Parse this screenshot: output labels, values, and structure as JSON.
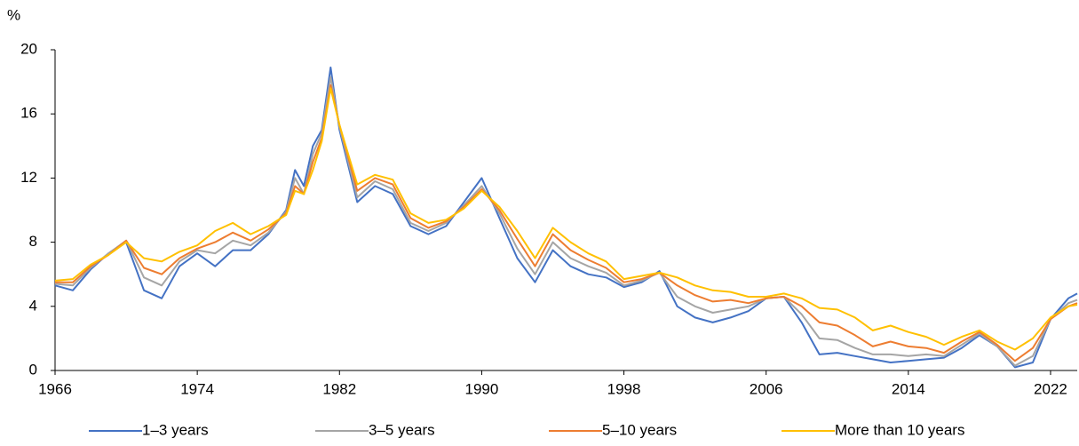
{
  "chart_data": {
    "type": "line",
    "y_label": "%",
    "x": [
      1966,
      1967,
      1968,
      1969,
      1970,
      1971,
      1972,
      1973,
      1974,
      1975,
      1976,
      1977,
      1978,
      1979,
      1979.5,
      1980,
      1980.5,
      1981,
      1981.5,
      1982,
      1983,
      1984,
      1985,
      1986,
      1987,
      1988,
      1989,
      1990,
      1991,
      1992,
      1993,
      1994,
      1995,
      1996,
      1997,
      1998,
      1999,
      2000,
      2001,
      2002,
      2003,
      2004,
      2005,
      2006,
      2007,
      2008,
      2009,
      2010,
      2011,
      2012,
      2013,
      2014,
      2015,
      2016,
      2017,
      2018,
      2019,
      2020,
      2021,
      2022,
      2023,
      2023.5
    ],
    "series": [
      {
        "name": "1–3 years",
        "color": "#4472c4",
        "values": [
          5.3,
          5.0,
          6.3,
          7.3,
          8.0,
          5.0,
          4.5,
          6.5,
          7.3,
          6.5,
          7.5,
          7.5,
          8.5,
          10.0,
          12.5,
          11.5,
          14.0,
          15.0,
          18.9,
          15.0,
          10.5,
          11.5,
          11.0,
          9.0,
          8.5,
          9.0,
          10.5,
          12.0,
          9.5,
          7.0,
          5.5,
          7.5,
          6.5,
          6.0,
          5.8,
          5.2,
          5.5,
          6.2,
          4.0,
          3.3,
          3.0,
          3.3,
          3.7,
          4.5,
          4.6,
          3.0,
          1.0,
          1.1,
          0.9,
          0.7,
          0.5,
          0.6,
          0.7,
          0.8,
          1.4,
          2.2,
          1.5,
          0.2,
          0.5,
          3.2,
          4.5,
          4.8
        ]
      },
      {
        "name": "3–5 years",
        "color": "#a5a5a5",
        "values": [
          5.4,
          5.3,
          6.4,
          7.3,
          8.1,
          5.8,
          5.3,
          6.8,
          7.5,
          7.3,
          8.1,
          7.8,
          8.6,
          9.9,
          12.0,
          11.0,
          13.5,
          14.8,
          18.3,
          15.2,
          10.8,
          11.8,
          11.3,
          9.2,
          8.7,
          9.2,
          10.3,
          11.5,
          9.8,
          7.6,
          6.0,
          8.0,
          7.0,
          6.5,
          6.1,
          5.3,
          5.6,
          6.1,
          4.6,
          4.0,
          3.6,
          3.8,
          4.0,
          4.5,
          4.6,
          3.5,
          2.0,
          1.9,
          1.4,
          1.0,
          1.0,
          0.9,
          1.0,
          0.9,
          1.6,
          2.3,
          1.5,
          0.3,
          0.9,
          3.2,
          4.2,
          4.4
        ]
      },
      {
        "name": "5–10 years",
        "color": "#ed7d31",
        "values": [
          5.5,
          5.5,
          6.5,
          7.2,
          8.1,
          6.4,
          6.0,
          7.0,
          7.6,
          8.0,
          8.6,
          8.1,
          8.8,
          9.8,
          11.5,
          11.0,
          13.0,
          14.5,
          17.8,
          15.3,
          11.2,
          12.0,
          11.6,
          9.5,
          8.9,
          9.3,
          10.2,
          11.3,
          10.0,
          8.2,
          6.5,
          8.5,
          7.5,
          6.9,
          6.4,
          5.5,
          5.7,
          6.1,
          5.3,
          4.7,
          4.3,
          4.4,
          4.2,
          4.5,
          4.6,
          4.0,
          3.0,
          2.8,
          2.2,
          1.5,
          1.8,
          1.5,
          1.4,
          1.1,
          1.8,
          2.4,
          1.6,
          0.6,
          1.4,
          3.2,
          4.0,
          4.2
        ]
      },
      {
        "name": "More than 10 years",
        "color": "#ffc000",
        "values": [
          5.6,
          5.7,
          6.6,
          7.2,
          8.0,
          7.0,
          6.8,
          7.4,
          7.8,
          8.7,
          9.2,
          8.5,
          9.0,
          9.7,
          11.2,
          11.0,
          12.5,
          14.3,
          17.6,
          15.3,
          11.6,
          12.2,
          11.9,
          9.8,
          9.2,
          9.4,
          10.1,
          11.2,
          10.2,
          8.7,
          7.0,
          8.9,
          8.0,
          7.3,
          6.8,
          5.7,
          5.9,
          6.1,
          5.8,
          5.3,
          5.0,
          4.9,
          4.6,
          4.6,
          4.8,
          4.5,
          3.9,
          3.8,
          3.3,
          2.5,
          2.8,
          2.4,
          2.1,
          1.6,
          2.1,
          2.5,
          1.8,
          1.3,
          2.0,
          3.3,
          4.0,
          4.1
        ]
      }
    ],
    "xlim": [
      1966,
      2023.5
    ],
    "xticks": [
      1966,
      1974,
      1982,
      1990,
      1998,
      2006,
      2014,
      2022
    ],
    "ylim": [
      0,
      20
    ],
    "yticks": [
      0,
      4,
      8,
      12,
      16,
      20
    ],
    "grid": false,
    "legend": "bottom"
  }
}
